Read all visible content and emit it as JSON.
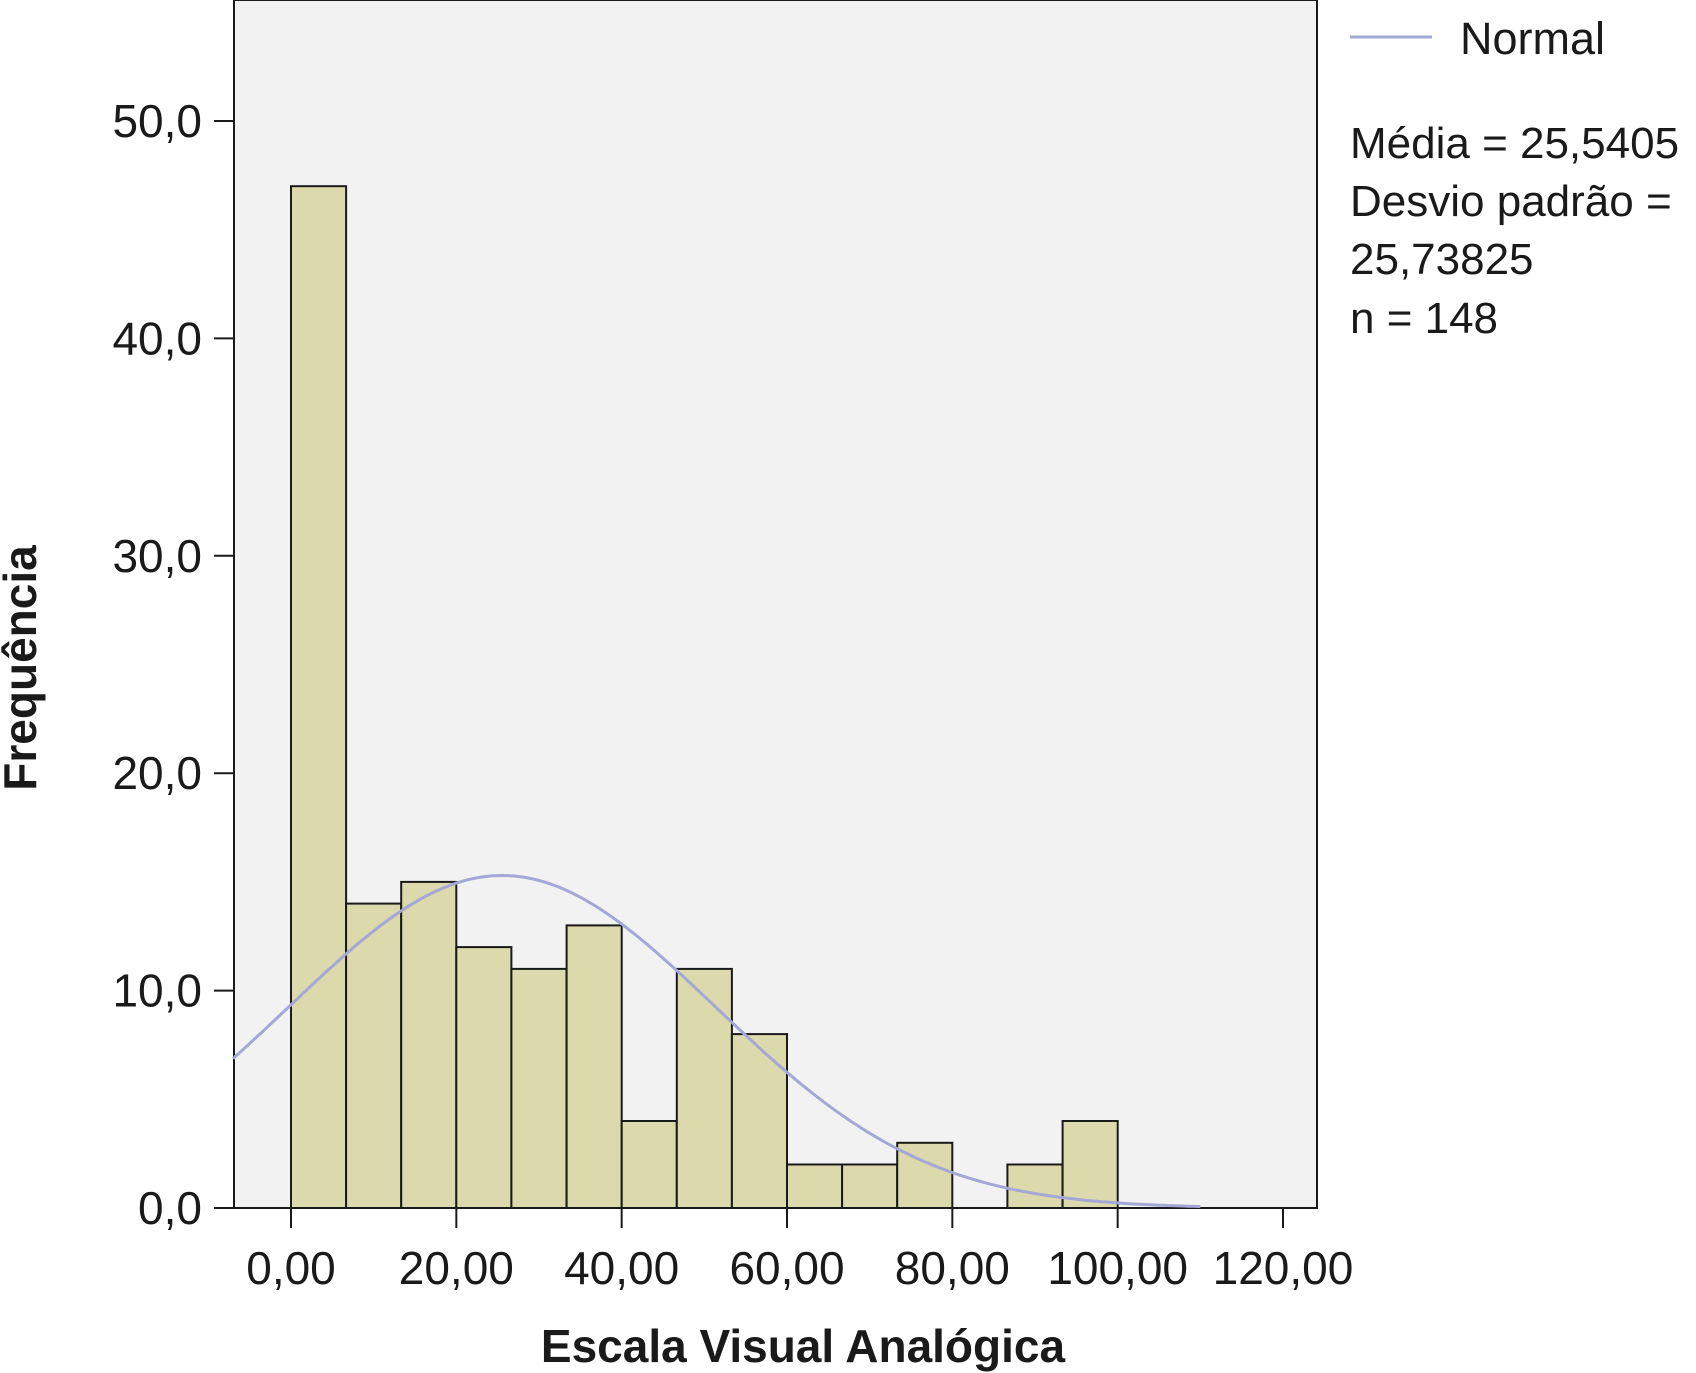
{
  "chart_data": {
    "type": "bar",
    "subtype": "histogram",
    "xlabel": "Escala Visual Analógica",
    "ylabel": "Frequência",
    "xlim": [
      -7,
      118
    ],
    "ylim": [
      0,
      55
    ],
    "x_ticks": [
      0,
      20,
      40,
      60,
      80,
      100,
      120
    ],
    "x_tick_labels": [
      "0,00",
      "20,00",
      "40,00",
      "60,00",
      "80,00",
      "100,00",
      "120,00"
    ],
    "y_ticks": [
      0,
      10,
      20,
      30,
      40,
      50
    ],
    "y_tick_labels": [
      "0,0",
      "10,0",
      "20,0",
      "30,0",
      "40,0",
      "50,0"
    ],
    "bin_width": 6.667,
    "bins": [
      {
        "start": 0.0,
        "end": 6.667,
        "count": 47
      },
      {
        "start": 6.667,
        "end": 13.333,
        "count": 14
      },
      {
        "start": 13.333,
        "end": 20.0,
        "count": 15
      },
      {
        "start": 20.0,
        "end": 26.667,
        "count": 12
      },
      {
        "start": 26.667,
        "end": 33.333,
        "count": 11
      },
      {
        "start": 33.333,
        "end": 40.0,
        "count": 13
      },
      {
        "start": 40.0,
        "end": 46.667,
        "count": 4
      },
      {
        "start": 46.667,
        "end": 53.333,
        "count": 11
      },
      {
        "start": 53.333,
        "end": 60.0,
        "count": 8
      },
      {
        "start": 60.0,
        "end": 66.667,
        "count": 2
      },
      {
        "start": 66.667,
        "end": 73.333,
        "count": 2
      },
      {
        "start": 73.333,
        "end": 80.0,
        "count": 3
      },
      {
        "start": 80.0,
        "end": 86.667,
        "count": 0
      },
      {
        "start": 86.667,
        "end": 93.333,
        "count": 2
      },
      {
        "start": 93.333,
        "end": 100.0,
        "count": 4
      }
    ],
    "normal_curve": {
      "mean": 25.5405,
      "sd": 25.73825,
      "n": 148,
      "x_range": [
        -7,
        110
      ]
    },
    "legend": {
      "entries": [
        "Normal"
      ],
      "placement": "top-right, outside plot"
    },
    "stats_lines": [
      "Média = 25,5405",
      "Desvio padrão =",
      "25,73825",
      "n = 148"
    ],
    "colors": {
      "bar_fill": "#dcd9ac",
      "bar_stroke": "#1a1a1a",
      "plot_background": "#f2f2f2",
      "normal_curve": "#a4a8d6",
      "axis": "#1a1a1a"
    },
    "grid": false
  }
}
